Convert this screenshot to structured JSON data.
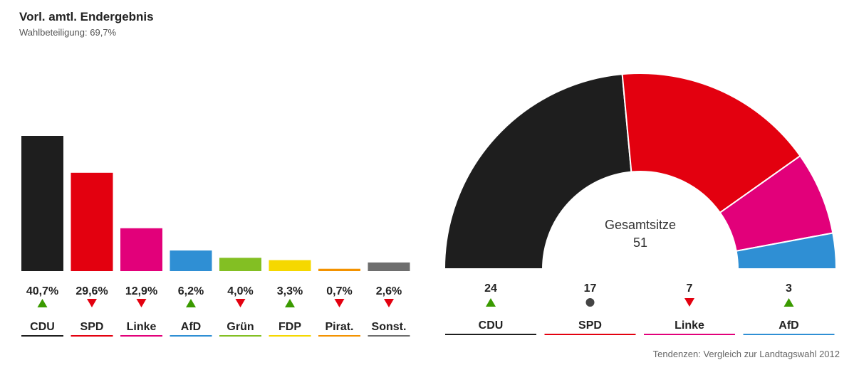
{
  "header": {
    "title": "Vorl. amtl. Endergebnis",
    "subtitle": "Wahlbeteiligung: 69,7%"
  },
  "colors": {
    "CDU": "#1e1e1e",
    "SPD": "#e3000f",
    "Linke": "#e2007a",
    "AfD": "#2f8fd4",
    "Grün": "#83bf23",
    "FDP": "#f5d800",
    "Pirat.": "#f39200",
    "Sonst.": "#6e6e6e",
    "trend_up": "#3a9a00",
    "trend_down": "#e3000f",
    "trend_neutral": "#444444"
  },
  "chart_data": [
    {
      "type": "bar",
      "categories": [
        "CDU",
        "SPD",
        "Linke",
        "AfD",
        "Grün",
        "FDP",
        "Pirat.",
        "Sonst."
      ],
      "values": [
        40.7,
        29.6,
        12.9,
        6.2,
        4.0,
        3.3,
        0.7,
        2.6
      ],
      "value_labels": [
        "40,7%",
        "29,6%",
        "12,9%",
        "6,2%",
        "4,0%",
        "3,3%",
        "0,7%",
        "2,6%"
      ],
      "trends": [
        "up",
        "down",
        "down",
        "up",
        "down",
        "up",
        "down",
        "down"
      ],
      "ylim": [
        0,
        40.7
      ]
    },
    {
      "type": "pie",
      "variant": "half-donut",
      "categories": [
        "CDU",
        "SPD",
        "Linke",
        "AfD"
      ],
      "values": [
        24,
        17,
        7,
        3
      ],
      "value_labels": [
        "24",
        "17",
        "7",
        "3"
      ],
      "trends": [
        "up",
        "neutral",
        "down",
        "up"
      ],
      "center_label": "Gesamtsitze",
      "center_value": "51"
    }
  ],
  "footnote": "Tendenzen: Vergleich zur Landtagswahl 2012"
}
